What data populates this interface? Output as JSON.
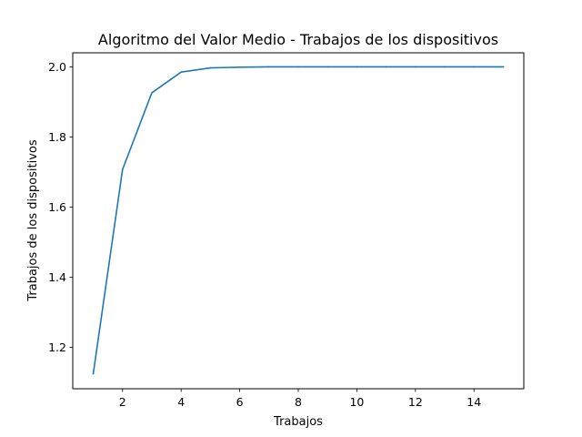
{
  "chart_data": {
    "type": "line",
    "title": "Algoritmo del Valor Medio - Trabajos de los dispositivos",
    "xlabel": "Trabajos",
    "ylabel": "Trabajos de los dispositivos",
    "xlim": [
      0.3,
      15.7
    ],
    "ylim": [
      1.082,
      2.04
    ],
    "xticks": [
      2,
      4,
      6,
      8,
      10,
      12,
      14
    ],
    "yticks": [
      1.2,
      1.4,
      1.6,
      1.8,
      2.0
    ],
    "ytick_labels": [
      "1.2",
      "1.4",
      "1.6",
      "1.8",
      "2.0"
    ],
    "grid": false,
    "series": [
      {
        "color": "#1f77b4",
        "x": [
          1,
          2,
          3,
          4,
          5,
          6,
          7,
          8,
          9,
          10,
          11,
          12,
          13,
          14,
          15
        ],
        "y": [
          1.125,
          1.707,
          1.926,
          1.985,
          1.997,
          1.999,
          2.0,
          2.0,
          2.0,
          2.0,
          2.0,
          2.0,
          2.0,
          2.0,
          2.0
        ]
      }
    ]
  }
}
